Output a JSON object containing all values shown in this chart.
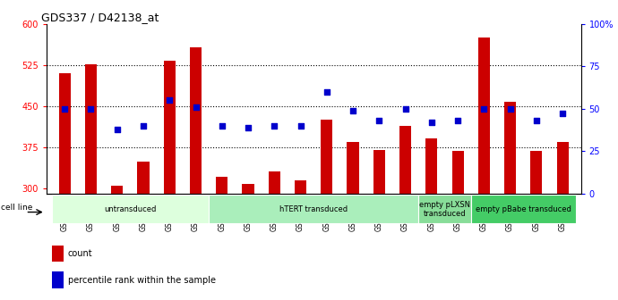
{
  "title": "GDS337 / D42138_at",
  "samples": [
    "GSM5157",
    "GSM5158",
    "GSM5163",
    "GSM5164",
    "GSM5175",
    "GSM5176",
    "GSM5159",
    "GSM5160",
    "GSM5165",
    "GSM5166",
    "GSM5169",
    "GSM5170",
    "GSM5172",
    "GSM5174",
    "GSM5161",
    "GSM5162",
    "GSM5167",
    "GSM5168",
    "GSM5171",
    "GSM5173"
  ],
  "counts": [
    510,
    527,
    305,
    348,
    533,
    557,
    320,
    308,
    330,
    314,
    425,
    385,
    370,
    413,
    390,
    368,
    575,
    457,
    368,
    385
  ],
  "percentiles": [
    50,
    50,
    38,
    40,
    55,
    51,
    40,
    39,
    40,
    40,
    60,
    49,
    43,
    50,
    42,
    43,
    50,
    50,
    43,
    47
  ],
  "ylim_left": [
    290,
    600
  ],
  "ylim_right": [
    0,
    100
  ],
  "yticks_left": [
    300,
    375,
    450,
    525,
    600
  ],
  "yticks_right": [
    0,
    25,
    50,
    75,
    100
  ],
  "bar_color": "#cc0000",
  "dot_color": "#0000cc",
  "bg_color": "#ffffff",
  "groups": [
    {
      "label": "untransduced",
      "start": 0,
      "end": 6,
      "color": "#ddffdd"
    },
    {
      "label": "hTERT transduced",
      "start": 6,
      "end": 14,
      "color": "#aaeebb"
    },
    {
      "label": "empty pLXSN\ntransduced",
      "start": 14,
      "end": 16,
      "color": "#88dd99"
    },
    {
      "label": "empty pBabe transduced",
      "start": 16,
      "end": 20,
      "color": "#44cc66"
    }
  ]
}
